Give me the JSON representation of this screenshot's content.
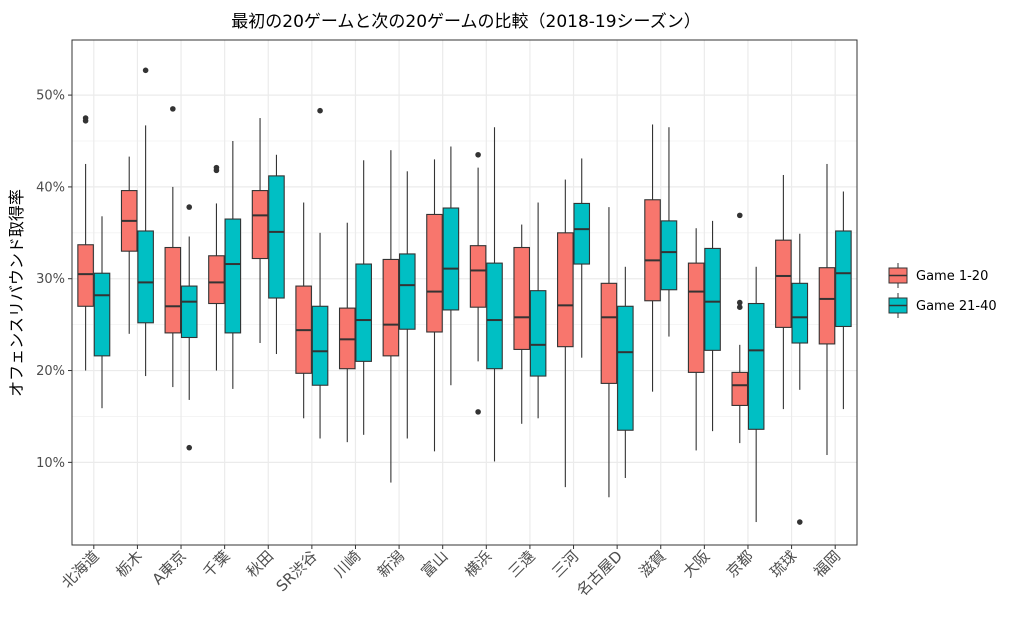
{
  "chart_data": {
    "type": "boxplot",
    "title": "最初の20ゲームと次の20ゲームの比較（2018-19シーズン）",
    "xlabel": "",
    "ylabel": "オフェンスリバウンド取得率",
    "ylim": [
      1,
      56
    ],
    "yticks": [
      10,
      20,
      30,
      40,
      50
    ],
    "ytick_labels": [
      "10%",
      "20%",
      "30%",
      "40%",
      "50%"
    ],
    "grid": true,
    "legend_position": "right",
    "categories": [
      "北海道",
      "栃木",
      "A東京",
      "千葉",
      "秋田",
      "SR渋谷",
      "川崎",
      "新潟",
      "富山",
      "横浜",
      "三遠",
      "三河",
      "名古屋D",
      "滋賀",
      "大阪",
      "京都",
      "琉球",
      "福岡"
    ],
    "series": [
      {
        "name": "Game 1-20",
        "color": "#F8766D",
        "boxes": [
          {
            "min": 20.0,
            "q1": 27.0,
            "median": 30.5,
            "q3": 33.7,
            "max": 42.5,
            "outliers": [
              47.2,
              47.5
            ]
          },
          {
            "min": 24.0,
            "q1": 33.0,
            "median": 36.3,
            "q3": 39.6,
            "max": 43.3,
            "outliers": []
          },
          {
            "min": 18.2,
            "q1": 24.1,
            "median": 27.0,
            "q3": 33.4,
            "max": 40.0,
            "outliers": [
              48.5
            ]
          },
          {
            "min": 20.0,
            "q1": 27.3,
            "median": 29.6,
            "q3": 32.5,
            "max": 38.2,
            "outliers": [
              41.8,
              42.1
            ]
          },
          {
            "min": 23.0,
            "q1": 32.2,
            "median": 36.9,
            "q3": 39.6,
            "max": 47.5,
            "outliers": []
          },
          {
            "min": 14.8,
            "q1": 19.7,
            "median": 24.4,
            "q3": 29.2,
            "max": 38.3,
            "outliers": []
          },
          {
            "min": 12.2,
            "q1": 20.2,
            "median": 23.4,
            "q3": 26.8,
            "max": 36.1,
            "outliers": []
          },
          {
            "min": 7.8,
            "q1": 21.6,
            "median": 25.0,
            "q3": 32.1,
            "max": 44.0,
            "outliers": []
          },
          {
            "min": 11.2,
            "q1": 24.2,
            "median": 28.6,
            "q3": 37.0,
            "max": 43.0,
            "outliers": []
          },
          {
            "min": 21.0,
            "q1": 26.9,
            "median": 30.9,
            "q3": 33.6,
            "max": 42.1,
            "outliers": [
              15.5,
              43.5
            ]
          },
          {
            "min": 14.2,
            "q1": 22.3,
            "median": 25.8,
            "q3": 33.4,
            "max": 35.9,
            "outliers": []
          },
          {
            "min": 7.3,
            "q1": 22.6,
            "median": 27.1,
            "q3": 35.0,
            "max": 40.8,
            "outliers": []
          },
          {
            "min": 6.2,
            "q1": 18.6,
            "median": 25.8,
            "q3": 29.5,
            "max": 37.8,
            "outliers": []
          },
          {
            "min": 17.7,
            "q1": 27.6,
            "median": 32.0,
            "q3": 38.6,
            "max": 46.8,
            "outliers": []
          },
          {
            "min": 11.3,
            "q1": 19.8,
            "median": 28.6,
            "q3": 31.7,
            "max": 35.5,
            "outliers": []
          },
          {
            "min": 12.1,
            "q1": 16.2,
            "median": 18.4,
            "q3": 19.8,
            "max": 22.8,
            "outliers": [
              26.9,
              27.4,
              36.9
            ]
          },
          {
            "min": 15.8,
            "q1": 24.7,
            "median": 30.3,
            "q3": 34.2,
            "max": 41.3,
            "outliers": []
          },
          {
            "min": 10.8,
            "q1": 22.9,
            "median": 27.8,
            "q3": 31.2,
            "max": 42.5,
            "outliers": []
          }
        ]
      },
      {
        "name": "Game 21-40",
        "color": "#00BFC4",
        "boxes": [
          {
            "min": 15.9,
            "q1": 21.6,
            "median": 28.2,
            "q3": 30.6,
            "max": 36.8,
            "outliers": []
          },
          {
            "min": 19.4,
            "q1": 25.2,
            "median": 29.6,
            "q3": 35.2,
            "max": 46.7,
            "outliers": [
              52.7
            ]
          },
          {
            "min": 16.8,
            "q1": 23.6,
            "median": 27.5,
            "q3": 29.2,
            "max": 34.6,
            "outliers": [
              11.6,
              37.8
            ]
          },
          {
            "min": 18.0,
            "q1": 24.1,
            "median": 31.6,
            "q3": 36.5,
            "max": 45.0,
            "outliers": []
          },
          {
            "min": 21.8,
            "q1": 27.9,
            "median": 35.1,
            "q3": 41.2,
            "max": 43.5,
            "outliers": []
          },
          {
            "min": 12.6,
            "q1": 18.4,
            "median": 22.1,
            "q3": 27.0,
            "max": 35.0,
            "outliers": [
              48.3
            ]
          },
          {
            "min": 13.0,
            "q1": 21.0,
            "median": 25.5,
            "q3": 31.6,
            "max": 42.9,
            "outliers": []
          },
          {
            "min": 12.6,
            "q1": 24.5,
            "median": 29.3,
            "q3": 32.7,
            "max": 41.7,
            "outliers": []
          },
          {
            "min": 18.4,
            "q1": 26.6,
            "median": 31.1,
            "q3": 37.7,
            "max": 44.4,
            "outliers": []
          },
          {
            "min": 10.1,
            "q1": 20.2,
            "median": 25.5,
            "q3": 31.7,
            "max": 46.5,
            "outliers": []
          },
          {
            "min": 14.8,
            "q1": 19.4,
            "median": 22.8,
            "q3": 28.7,
            "max": 38.3,
            "outliers": []
          },
          {
            "min": 21.4,
            "q1": 31.6,
            "median": 35.4,
            "q3": 38.2,
            "max": 43.1,
            "outliers": []
          },
          {
            "min": 8.3,
            "q1": 13.5,
            "median": 22.0,
            "q3": 27.0,
            "max": 31.3,
            "outliers": []
          },
          {
            "min": 23.7,
            "q1": 28.8,
            "median": 32.9,
            "q3": 36.3,
            "max": 46.5,
            "outliers": []
          },
          {
            "min": 13.4,
            "q1": 22.2,
            "median": 27.5,
            "q3": 33.3,
            "max": 36.3,
            "outliers": []
          },
          {
            "min": 3.5,
            "q1": 13.6,
            "median": 22.2,
            "q3": 27.3,
            "max": 31.3,
            "outliers": []
          },
          {
            "min": 17.9,
            "q1": 23.0,
            "median": 25.8,
            "q3": 29.5,
            "max": 34.9,
            "outliers": [
              3.5
            ]
          },
          {
            "min": 15.8,
            "q1": 24.8,
            "median": 30.6,
            "q3": 35.2,
            "max": 39.5,
            "outliers": []
          }
        ]
      }
    ]
  }
}
